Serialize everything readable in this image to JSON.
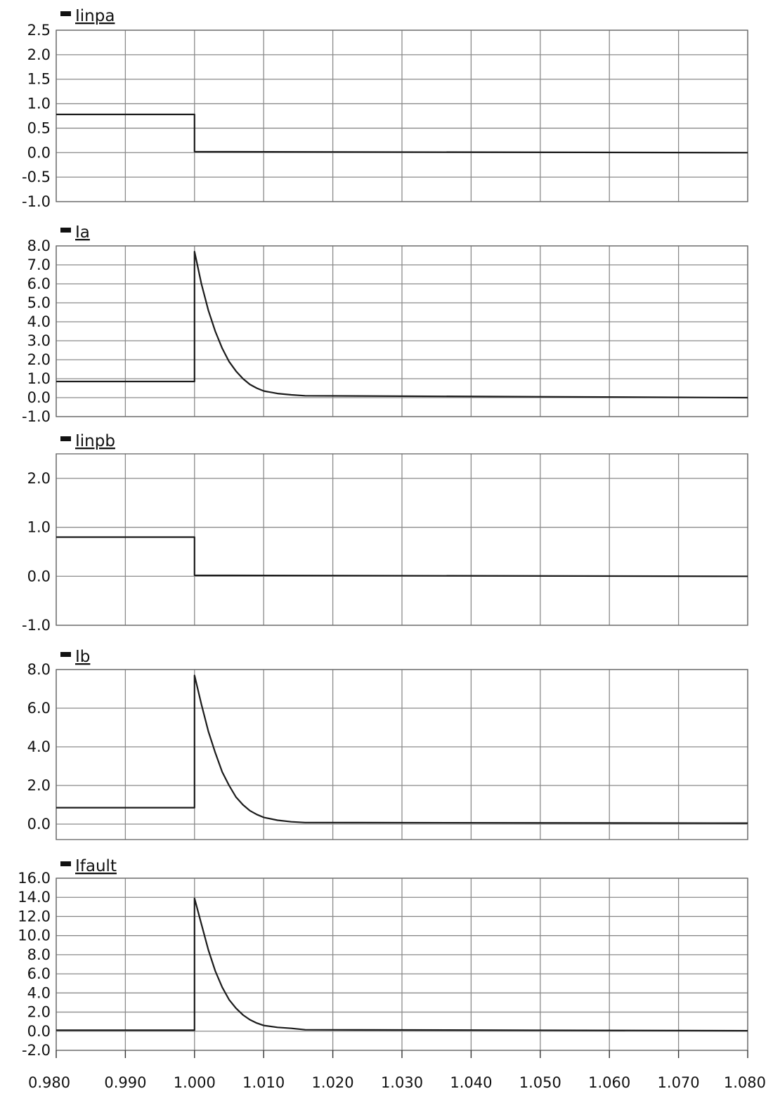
{
  "chart_data": [
    {
      "type": "line",
      "legend": "Iinpa",
      "yticks": [
        "2.5",
        "2.0",
        "1.5",
        "1.0",
        "0.5",
        "0.0",
        "-0.5",
        "-1.0"
      ],
      "ylim": [
        -1.0,
        2.5
      ],
      "xlim": [
        0.98,
        1.08
      ],
      "grid": true,
      "x": [
        0.98,
        1.0,
        1.0,
        1.08
      ],
      "y": [
        0.78,
        0.78,
        0.02,
        0.0
      ]
    },
    {
      "type": "line",
      "legend": "Ia",
      "yticks": [
        "8.0",
        "7.0",
        "6.0",
        "5.0",
        "4.0",
        "3.0",
        "2.0",
        "1.0",
        "0.0",
        "-1.0"
      ],
      "ylim": [
        -1.0,
        8.0
      ],
      "xlim": [
        0.98,
        1.08
      ],
      "grid": true,
      "x": [
        0.98,
        1.0,
        1.0,
        1.001,
        1.002,
        1.003,
        1.004,
        1.005,
        1.006,
        1.007,
        1.008,
        1.009,
        1.01,
        1.012,
        1.014,
        1.016,
        1.08
      ],
      "y": [
        0.85,
        0.85,
        7.7,
        6.0,
        4.6,
        3.5,
        2.6,
        1.9,
        1.4,
        1.0,
        0.7,
        0.5,
        0.35,
        0.22,
        0.15,
        0.1,
        0.0
      ]
    },
    {
      "type": "line",
      "legend": "Iinpb",
      "yticks": [
        "2.0",
        "1.0",
        "0.0",
        "-1.0"
      ],
      "ylim": [
        -1.0,
        2.5
      ],
      "xlim": [
        0.98,
        1.08
      ],
      "grid": true,
      "x": [
        0.98,
        1.0,
        1.0,
        1.08
      ],
      "y": [
        0.8,
        0.8,
        0.02,
        0.0
      ]
    },
    {
      "type": "line",
      "legend": "Ib",
      "yticks": [
        "8.0",
        "6.0",
        "4.0",
        "2.0",
        "0.0"
      ],
      "ylim": [
        -0.8,
        8.0
      ],
      "xlim": [
        0.98,
        1.08
      ],
      "grid": true,
      "x": [
        0.98,
        1.0,
        1.0,
        1.001,
        1.002,
        1.003,
        1.004,
        1.005,
        1.006,
        1.007,
        1.008,
        1.009,
        1.01,
        1.012,
        1.014,
        1.016,
        1.08
      ],
      "y": [
        0.85,
        0.85,
        7.7,
        6.2,
        4.8,
        3.7,
        2.7,
        2.0,
        1.4,
        1.0,
        0.7,
        0.5,
        0.35,
        0.2,
        0.12,
        0.08,
        0.05
      ]
    },
    {
      "type": "line",
      "legend": "Ifault",
      "yticks": [
        "16.0",
        "14.0",
        "12.0",
        "10.0",
        "8.0",
        "6.0",
        "4.0",
        "2.0",
        "0.0",
        "-2.0"
      ],
      "ylim": [
        -2.0,
        16.0
      ],
      "xlim": [
        0.98,
        1.08
      ],
      "grid": true,
      "x": [
        0.98,
        1.0,
        1.0,
        1.001,
        1.002,
        1.003,
        1.004,
        1.005,
        1.006,
        1.007,
        1.008,
        1.009,
        1.01,
        1.012,
        1.014,
        1.016,
        1.08
      ],
      "y": [
        0.1,
        0.1,
        13.9,
        11.2,
        8.5,
        6.3,
        4.6,
        3.3,
        2.4,
        1.7,
        1.2,
        0.85,
        0.6,
        0.4,
        0.3,
        0.15,
        0.05
      ]
    }
  ],
  "x_axis": {
    "ticks": [
      "0.980",
      "0.990",
      "1.000",
      "1.010",
      "1.020",
      "1.030",
      "1.040",
      "1.050",
      "1.060",
      "1.070",
      "1.080"
    ],
    "values": [
      0.98,
      0.99,
      1.0,
      1.01,
      1.02,
      1.03,
      1.04,
      1.05,
      1.06,
      1.07,
      1.08
    ]
  }
}
